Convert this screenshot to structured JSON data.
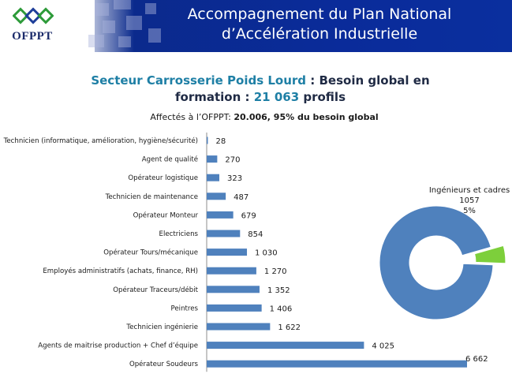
{
  "header": {
    "logo_text": "OFPPT",
    "title_line1": "Accompagnement du Plan National",
    "title_line2": "d’Accélération Industrielle"
  },
  "subtitle": {
    "sector": "Secteur Carrosserie Poids Lourd",
    "sep": " : ",
    "need_prefix": "Besoin global en",
    "line2_prefix": "formation : ",
    "total": "21 063",
    "line2_suffix": " profils"
  },
  "note": {
    "prefix": "Affectés à l’OFPPT: ",
    "value": "20.006, 95% du besoin global"
  },
  "colors": {
    "bar": "#4f81bd",
    "pie_main": "#4f81bd",
    "pie_slice": "#7dcf3b",
    "header_band": "#0a2b9a",
    "accent_teal": "#1e7fa5"
  },
  "chart_data": [
    {
      "type": "bar",
      "orientation": "horizontal",
      "categories": [
        "Technicien (informatique, amélioration, hygiène/sécurité)",
        "Agent de qualité",
        "Opérateur  logistique",
        "Technicien de maintenance",
        "Opérateur Monteur",
        "Electriciens",
        "Opérateur Tours/mécanique",
        "Employés administratifs (achats, finance, RH)",
        "Opérateur Traceurs/débit",
        "Peintres",
        "Technicien ingénierie",
        "Agents de maitrise production + Chef d’équipe",
        "Opérateur Soudeurs"
      ],
      "values": [
        28,
        270,
        323,
        487,
        679,
        854,
        1030,
        1270,
        1352,
        1406,
        1622,
        4025,
        6662
      ],
      "value_labels": [
        "28",
        "270",
        "323",
        "487",
        "679",
        "854",
        "1 030",
        "1 270",
        "1 352",
        "1 406",
        "1 622",
        "4 025",
        "6 662"
      ],
      "xlim": [
        0,
        6662
      ],
      "grid": false,
      "legend": "none"
    },
    {
      "type": "pie",
      "style": "donut",
      "slices": [
        {
          "name": "Ingénieurs et cadres",
          "value": 1057,
          "label_value": "1057",
          "percent": "5%",
          "exploded": true
        },
        {
          "name": "",
          "value": 20006,
          "exploded": false
        }
      ]
    }
  ]
}
